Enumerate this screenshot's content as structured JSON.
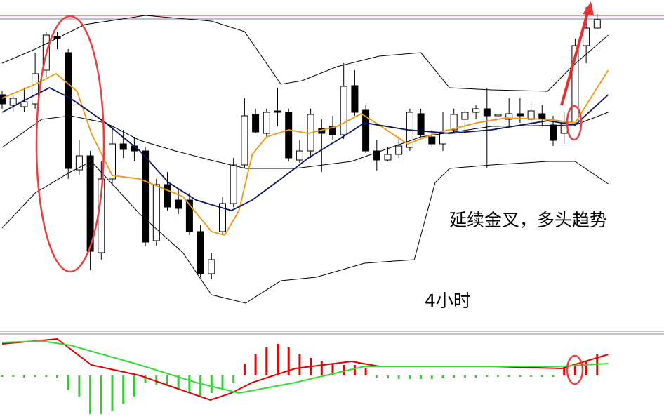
{
  "chart_data": {
    "type": "candlestick",
    "annotations": [
      "延续金叉，多头趋势",
      "4小时"
    ],
    "candles": {
      "open": [
        465,
        450,
        448,
        452,
        500,
        548,
        525,
        358,
        378,
        240,
        345,
        395,
        392,
        385,
        257,
        337,
        315,
        315,
        270,
        210,
        270,
        310,
        365,
        437,
        410,
        442,
        440,
        372,
        385,
        417,
        420,
        408,
        478,
        443,
        385,
        372,
        380,
        390,
        438,
        405,
        395,
        415,
        430,
        440,
        445,
        435,
        430,
        438,
        430,
        438,
        422,
        410,
        425,
        535,
        560
      ],
      "high": [
        470,
        465,
        475,
        525,
        555,
        555,
        530,
        400,
        385,
        370,
        420,
        415,
        405,
        390,
        345,
        355,
        330,
        325,
        280,
        240,
        320,
        375,
        460,
        445,
        445,
        475,
        445,
        400,
        445,
        430,
        435,
        510,
        500,
        450,
        400,
        390,
        405,
        445,
        445,
        415,
        440,
        445,
        445,
        450,
        475,
        475,
        460,
        460,
        455,
        450,
        435,
        440,
        545,
        590,
        580
      ],
      "low": [
        445,
        440,
        440,
        445,
        490,
        530,
        345,
        350,
        215,
        230,
        335,
        375,
        370,
        250,
        250,
        300,
        295,
        265,
        205,
        202,
        265,
        305,
        360,
        410,
        405,
        420,
        370,
        368,
        375,
        355,
        400,
        402,
        435,
        382,
        357,
        370,
        375,
        385,
        405,
        390,
        385,
        410,
        415,
        430,
        360,
        370,
        420,
        425,
        420,
        420,
        392,
        395,
        420,
        510,
        558
      ],
      "close": [
        452,
        460,
        455,
        495,
        550,
        545,
        360,
        378,
        242,
        345,
        395,
        387,
        385,
        255,
        337,
        305,
        303,
        270,
        210,
        230,
        310,
        365,
        435,
        412,
        440,
        440,
        375,
        385,
        437,
        410,
        408,
        477,
        440,
        385,
        372,
        380,
        392,
        440,
        408,
        395,
        410,
        437,
        440,
        445,
        435,
        437,
        438,
        435,
        442,
        430,
        400,
        425,
        535,
        560,
        572
      ],
      "up_color": "#ffffff",
      "down_color": "#000000"
    },
    "lines": [
      {
        "color": "#000000",
        "x": [
          0,
          3,
          7.5,
          13,
          19,
          22,
          25.3,
          27.2,
          30.4,
          34.2,
          38,
          40.6,
          44.4,
          49.5,
          51.7,
          55
        ],
        "values": [
          510,
          530,
          565,
          578,
          570,
          555,
          480,
          485,
          505,
          520,
          525,
          475,
          472,
          470,
          505,
          550
        ]
      },
      {
        "color": "#000000",
        "x": [
          0,
          3,
          6.2,
          8.1,
          12.5,
          16.4,
          19,
          22.1,
          25.3,
          28.5,
          32.9,
          37.4,
          39.3,
          40.6,
          44.4,
          49.5,
          52,
          55
        ],
        "values": [
          275,
          325,
          355,
          370,
          295,
          240,
          180,
          168,
          200,
          205,
          225,
          230,
          340,
          360,
          365,
          370,
          370,
          338
        ]
      },
      {
        "color": "#000000",
        "x": [
          0,
          3.6,
          6.2,
          9.4,
          12.5,
          15.7,
          18.9,
          22.1,
          26.6,
          31.7,
          38,
          44.4,
          52,
          55
        ],
        "values": [
          390,
          430,
          435,
          425,
          400,
          385,
          372,
          360,
          360,
          370,
          405,
          420,
          422,
          440
        ]
      },
      {
        "color": "#f0960f",
        "x": [
          0,
          3,
          4.9,
          6.8,
          8.1,
          10,
          12.5,
          16.4,
          19,
          20.2,
          21.5,
          22.7,
          24,
          26,
          27.8,
          30.4,
          32.6,
          34.2,
          36.8,
          39.3,
          43.1,
          45.7,
          49.5,
          52,
          55
        ],
        "values": [
          460,
          480,
          495,
          470,
          410,
          350,
          345,
          320,
          270,
          265,
          300,
          380,
          405,
          415,
          410,
          420,
          438,
          422,
          395,
          410,
          425,
          432,
          430,
          425,
          500
        ]
      },
      {
        "color": "#0a1466",
        "x": [
          0,
          2.4,
          4.3,
          6.2,
          9.4,
          12.5,
          15.1,
          17.6,
          20.8,
          22.7,
          25.3,
          27.8,
          30.4,
          32.9,
          36.8,
          40.6,
          44.4,
          49.5,
          52,
          55
        ],
        "values": [
          440,
          460,
          475,
          460,
          425,
          385,
          340,
          315,
          300,
          315,
          345,
          375,
          400,
          425,
          415,
          410,
          415,
          428,
          422,
          465
        ]
      }
    ],
    "histogram": {
      "pos_color": "#e60000",
      "neg_color": "#33cc33",
      "values": [
        -2,
        -2,
        -3,
        -2,
        -2,
        -3,
        -20,
        -30,
        -55,
        -55,
        -50,
        -40,
        -30,
        -10,
        -13,
        -15,
        -20,
        -25,
        -30,
        -25,
        -20,
        -10,
        17,
        30,
        40,
        45,
        40,
        30,
        25,
        20,
        17,
        15,
        15,
        10,
        -3,
        -4,
        -5,
        -5,
        -5,
        -5,
        -4,
        -3,
        -3,
        -3,
        -2,
        -2,
        -2,
        -2,
        -2,
        -2,
        -2,
        10,
        15,
        20,
        30
      ]
    },
    "signal_lines": [
      {
        "color": "#e00000",
        "x": [
          0,
          5,
          8.1,
          12.5,
          18.9,
          20.8,
          22.7,
          26.6,
          31.7,
          34.2,
          44.4,
          50.8,
          55
        ],
        "values": [
          45,
          52,
          15,
          0,
          -35,
          -25,
          -10,
          10,
          20,
          13,
          13,
          10,
          30
        ]
      },
      {
        "color": "#33dd33",
        "x": [
          0,
          3.6,
          6.2,
          12.5,
          17.6,
          21.5,
          26.6,
          32.9,
          44.4,
          50.8,
          55
        ],
        "values": [
          47,
          49,
          43,
          15,
          -10,
          -25,
          -10,
          13,
          13,
          13,
          17
        ]
      }
    ]
  }
}
